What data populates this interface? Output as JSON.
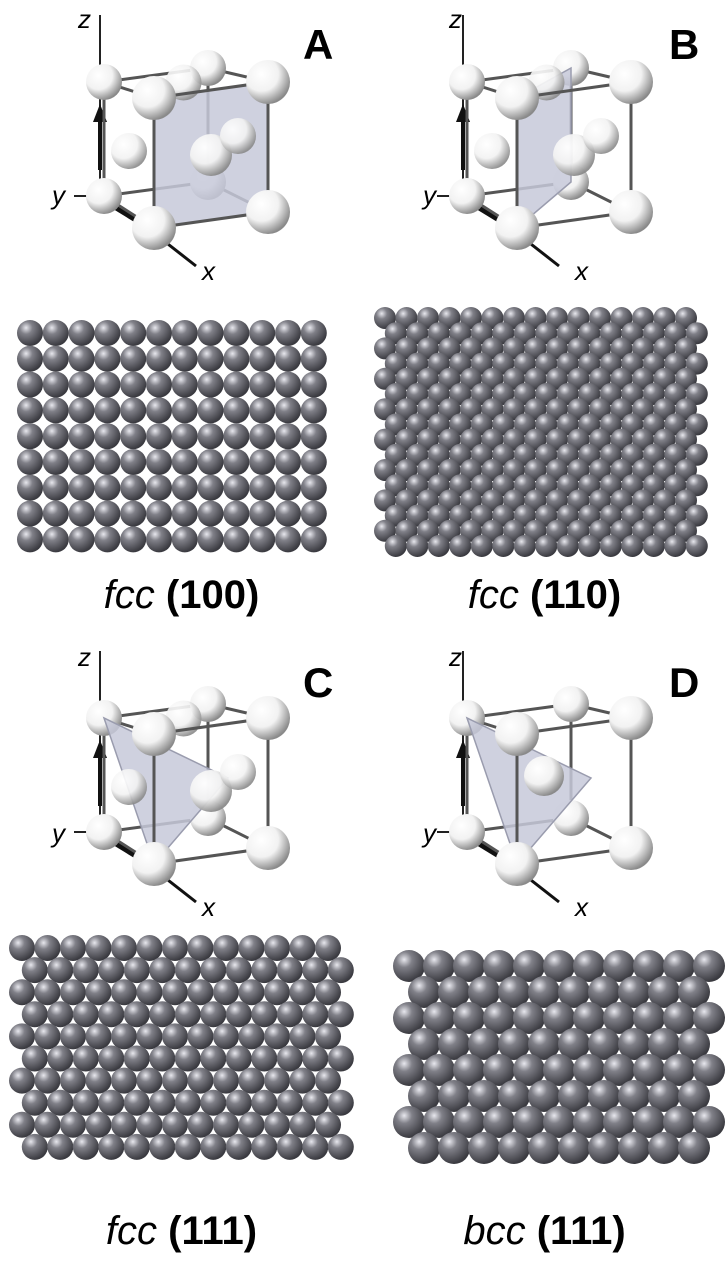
{
  "panels": [
    {
      "id": "A",
      "letter": "A",
      "lattice": "fcc",
      "index": "(100)",
      "axes": {
        "z": "z",
        "y": "y",
        "x": "x"
      },
      "surface": "square"
    },
    {
      "id": "B",
      "letter": "B",
      "lattice": "fcc",
      "index": "(110)",
      "axes": {
        "z": "z",
        "y": "y",
        "x": "x"
      },
      "surface": "rect"
    },
    {
      "id": "C",
      "letter": "C",
      "lattice": "fcc",
      "index": "(111)",
      "axes": {
        "z": "z",
        "y": "y",
        "x": "x"
      },
      "surface": "hex"
    },
    {
      "id": "D",
      "letter": "D",
      "lattice": "bcc",
      "index": "(111)",
      "axes": {
        "z": "z",
        "y": "y",
        "x": "x"
      },
      "surface": "hex-bcc"
    }
  ],
  "colors": {
    "atom_light": "#f2f2f2",
    "atom_dark": "#808088",
    "plane": "#c7c9d9",
    "frame": "#555555"
  }
}
